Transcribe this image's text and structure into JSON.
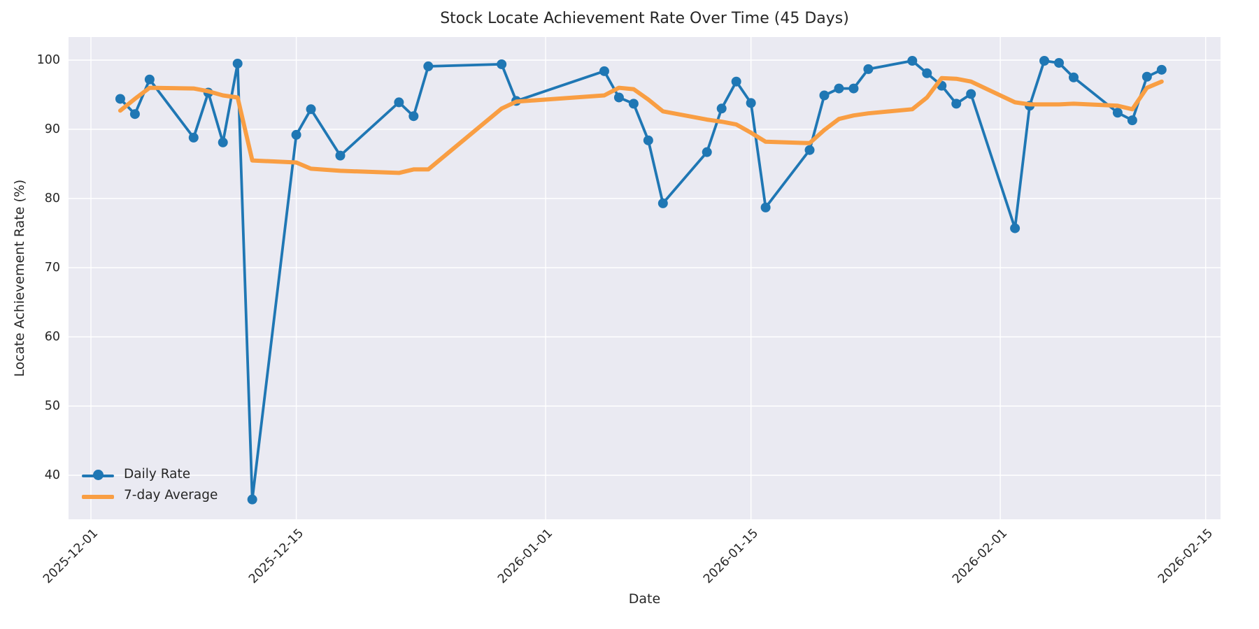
{
  "chart_data": {
    "type": "line",
    "title": "Stock Locate Achievement Rate Over Time (45 Days)",
    "xlabel": "Date",
    "ylabel": "Locate Achievement Rate (%)",
    "grid": true,
    "legend_position": "lower left",
    "plot_background": "#eaeaf2",
    "grid_color": "#ffffff",
    "text_color": "#262626",
    "y_ticks": [
      40,
      50,
      60,
      70,
      80,
      90,
      100
    ],
    "ylim": [
      33.7,
      103.3
    ],
    "x_ticks": [
      "2025-12-01",
      "2025-12-15",
      "2026-01-01",
      "2026-01-15",
      "2026-02-01",
      "2026-02-15"
    ],
    "x": [
      "2025-12-03",
      "2025-12-04",
      "2025-12-05",
      "2025-12-08",
      "2025-12-09",
      "2025-12-10",
      "2025-12-11",
      "2025-12-12",
      "2025-12-15",
      "2025-12-16",
      "2025-12-18",
      "2025-12-22",
      "2025-12-23",
      "2025-12-24",
      "2025-12-29",
      "2025-12-30",
      "2026-01-05",
      "2026-01-06",
      "2026-01-07",
      "2026-01-08",
      "2026-01-09",
      "2026-01-12",
      "2026-01-13",
      "2026-01-14",
      "2026-01-15",
      "2026-01-16",
      "2026-01-19",
      "2026-01-20",
      "2026-01-21",
      "2026-01-22",
      "2026-01-23",
      "2026-01-26",
      "2026-01-27",
      "2026-01-28",
      "2026-01-29",
      "2026-01-30",
      "2026-02-02",
      "2026-02-03",
      "2026-02-04",
      "2026-02-05",
      "2026-02-06",
      "2026-02-09",
      "2026-02-10",
      "2026-02-11",
      "2026-02-12"
    ],
    "series": [
      {
        "name": "Daily Rate",
        "color": "#1f77b4",
        "marker": "circle",
        "marker_radius": 7,
        "line_width": 3.8,
        "values": [
          94.4,
          92.2,
          97.2,
          88.8,
          95.3,
          88.1,
          99.5,
          36.5,
          89.2,
          92.9,
          86.2,
          93.9,
          91.9,
          99.1,
          99.4,
          94.1,
          98.4,
          94.6,
          93.7,
          88.4,
          79.3,
          86.7,
          93.0,
          96.9,
          93.8,
          78.7,
          87.0,
          94.9,
          95.9,
          95.9,
          98.7,
          99.9,
          98.1,
          96.3,
          93.7,
          95.1,
          75.7,
          93.4,
          99.9,
          99.6,
          97.5,
          92.4,
          91.3,
          97.6,
          98.6
        ]
      },
      {
        "name": "7-day Average",
        "color": "#f99e43",
        "marker": "none",
        "marker_radius": 0,
        "line_width": 6,
        "values": [
          92.7,
          94.4,
          96.0,
          95.9,
          95.5,
          94.9,
          94.6,
          85.5,
          85.2,
          84.3,
          84.0,
          83.7,
          84.2,
          84.2,
          93.0,
          94.0,
          94.9,
          96.0,
          95.8,
          94.3,
          92.6,
          91.4,
          91.1,
          90.7,
          89.5,
          88.2,
          88.0,
          89.9,
          91.5,
          92.0,
          92.3,
          92.9,
          94.6,
          97.4,
          97.3,
          96.9,
          93.9,
          93.6,
          93.6,
          93.6,
          93.7,
          93.4,
          92.9,
          96.0,
          96.9
        ]
      }
    ]
  }
}
